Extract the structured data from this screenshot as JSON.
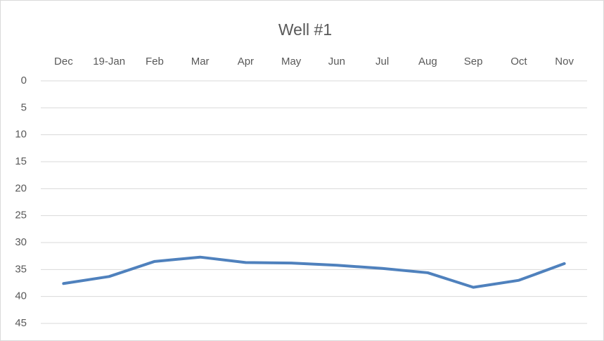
{
  "chart_data": {
    "type": "line",
    "title": "Well #1",
    "categories": [
      "Dec",
      "19-Jan",
      "Feb",
      "Mar",
      "Apr",
      "May",
      "Jun",
      "Jul",
      "Aug",
      "Sep",
      "Oct",
      "Nov"
    ],
    "series": [
      {
        "name": "Well #1",
        "color": "#4f81bd",
        "values": [
          37.6,
          36.3,
          33.5,
          32.7,
          33.7,
          33.8,
          34.2,
          34.8,
          35.6,
          38.3,
          37.0,
          33.9
        ]
      }
    ],
    "ylim": [
      0,
      45
    ],
    "yticks": [
      0,
      5,
      10,
      15,
      20,
      25,
      30,
      35,
      40,
      45
    ],
    "y_reversed": true,
    "x_axis_position": "top",
    "grid": true
  }
}
